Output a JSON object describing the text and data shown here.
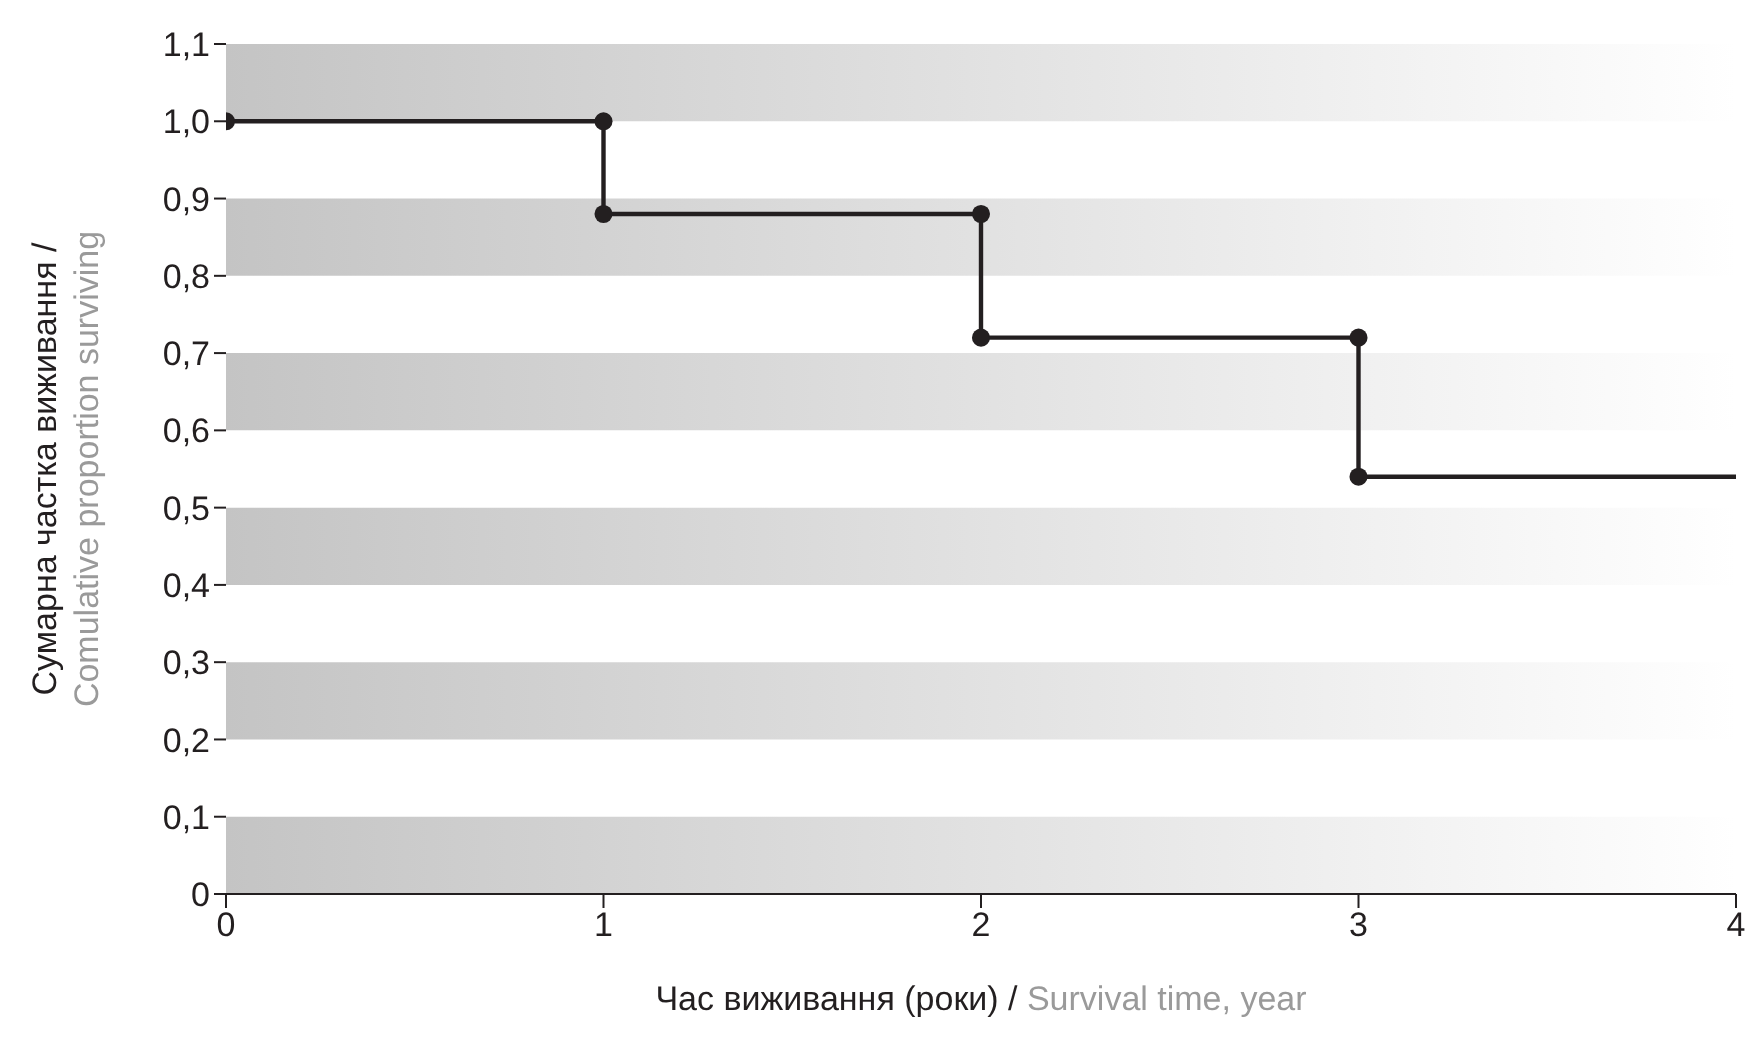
{
  "chart_data": {
    "type": "line",
    "xlabel": "Час виживання (роки) / Survival time, year",
    "ylabel": "Сумарна частка виживання / Comulative proportion surviving",
    "series": [
      {
        "color": "#231f20",
        "marker": "none",
        "x": [
          0,
          1,
          1,
          2,
          2,
          3,
          3,
          4
        ],
        "values": [
          1.0,
          1.0,
          0.88,
          0.88,
          0.72,
          0.72,
          0.54,
          0.54
        ]
      },
      {
        "type": "scatter",
        "color": "#231f20",
        "marker": "circle",
        "x": [
          0,
          1,
          1,
          2,
          2,
          3,
          3
        ],
        "values": [
          1.0,
          1.0,
          0.88,
          0.88,
          0.72,
          0.72,
          0.54
        ]
      }
    ],
    "xlim": [
      0,
      4
    ],
    "xticks": [
      0,
      1,
      2,
      3,
      4
    ],
    "ylim": [
      0,
      1.1
    ],
    "yticks": [
      0,
      {
        "value": 0.1,
        "label": "0,1"
      },
      {
        "value": 0.2,
        "label": "0,2"
      },
      {
        "value": 0.3,
        "label": "0,3"
      },
      {
        "value": 0.4,
        "label": "0,4"
      },
      {
        "value": 0.5,
        "label": "0,5"
      },
      {
        "value": 0.6,
        "label": "0,6"
      },
      {
        "value": 0.7,
        "label": "0,7"
      },
      {
        "value": 0.8,
        "label": "0,8"
      },
      {
        "value": 0.9,
        "label": "0,9"
      },
      {
        "value": 1.0,
        "label": "1,0"
      },
      {
        "value": 1.1,
        "label": "1,1"
      }
    ],
    "bands": [
      {
        "axis": "y",
        "from": 0,
        "to": 0.1,
        "color": "#c4c4c4"
      },
      {
        "axis": "y",
        "from": 0.2,
        "to": 0.3,
        "color": "#c4c4c4"
      },
      {
        "axis": "y",
        "from": 0.4,
        "to": 0.5,
        "color": "#c4c4c4"
      },
      {
        "axis": "y",
        "from": 0.6,
        "to": 0.7,
        "color": "#c4c4c4"
      },
      {
        "axis": "y",
        "from": 0.8,
        "to": 0.9,
        "color": "#c4c4c4"
      },
      {
        "axis": "y",
        "from": 1.0,
        "to": 1.1,
        "color": "#c4c4c4"
      }
    ]
  }
}
